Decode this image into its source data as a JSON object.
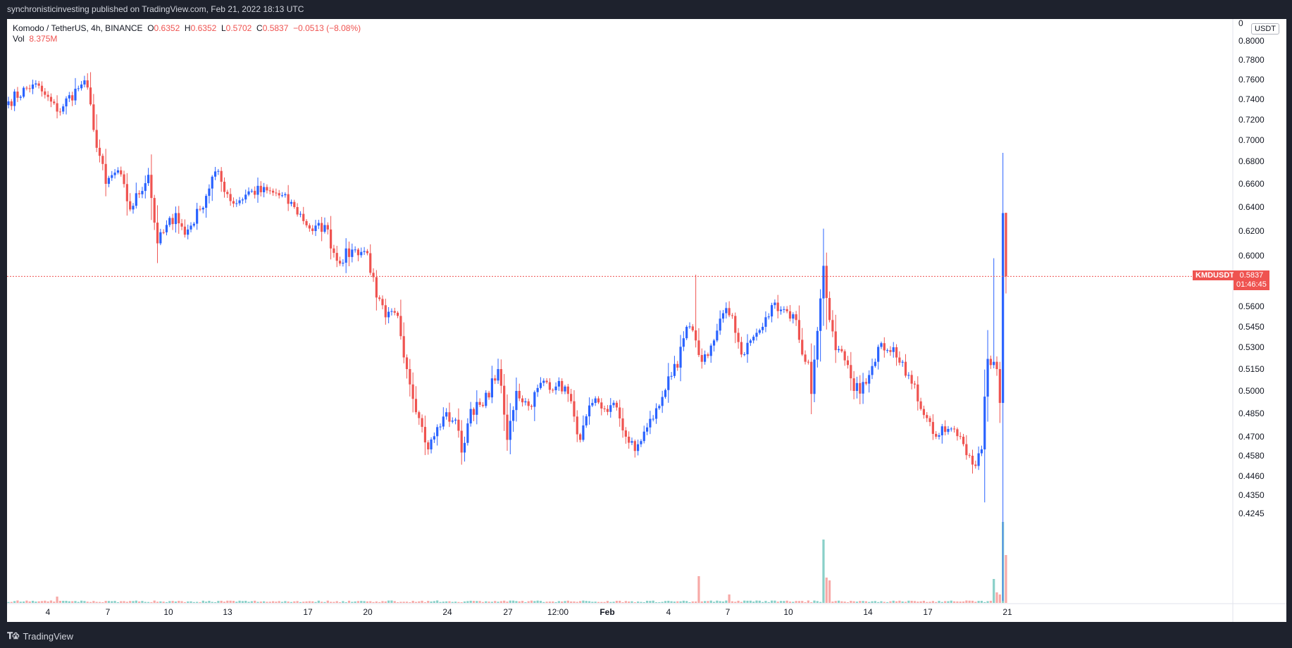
{
  "header": {
    "publish_line": "synchronisticinvesting published on TradingView.com, Feb 21, 2022 18:13 UTC"
  },
  "footer": {
    "brand": "TradingView",
    "logo_icon": "tradingview-logo-icon"
  },
  "legend": {
    "symbol_line": "Komodo / TetherUS, 4h, BINANCE",
    "o_label": "O",
    "o_value": "0.6352",
    "h_label": "H",
    "h_value": "0.6352",
    "l_label": "L",
    "l_value": "0.5702",
    "c_label": "C",
    "c_value": "0.5837",
    "change": "−0.0513 (−8.08%)",
    "vol_label": "Vol",
    "vol_value": "8.375M"
  },
  "price_axis": {
    "unit": "USDT",
    "top_tick": "0"
  },
  "last_price": {
    "symbol": "KMDUSDT",
    "value": "0.5837",
    "countdown": "01:46:45"
  },
  "colors": {
    "up": "#2962ff",
    "down": "#ef5350",
    "vol_up": "#89d0c8",
    "vol_down": "#f7a9a7",
    "price_line": "#ef5350"
  },
  "chart_data": {
    "type": "candlestick",
    "interval": "4h",
    "x_tick_labels": [
      "4",
      "7",
      "10",
      "13",
      "17",
      "20",
      "24",
      "27",
      "12:00",
      "Feb",
      "4",
      "7",
      "10",
      "14",
      "17",
      "21"
    ],
    "y_tick_labels": [
      "0.8000",
      "0.7800",
      "0.7600",
      "0.7400",
      "0.7200",
      "0.7000",
      "0.6800",
      "0.6600",
      "0.6400",
      "0.6200",
      "0.6000",
      "0.5600",
      "0.5450",
      "0.5300",
      "0.5150",
      "0.5000",
      "0.4850",
      "0.4700",
      "0.4580",
      "0.4460",
      "0.4350",
      "0.4245"
    ],
    "log_scale": true,
    "grid": false,
    "waypoints": [
      {
        "x": 0,
        "price": 0.738
      },
      {
        "x": 8,
        "price": 0.755
      },
      {
        "x": 11,
        "price": 0.748
      },
      {
        "x": 16,
        "price": 0.728
      },
      {
        "x": 24,
        "price": 0.755
      },
      {
        "x": 26,
        "price": 0.752
      },
      {
        "x": 28,
        "price": 0.71
      },
      {
        "x": 32,
        "price": 0.66
      },
      {
        "x": 36,
        "price": 0.672
      },
      {
        "x": 40,
        "price": 0.638
      },
      {
        "x": 46,
        "price": 0.668
      },
      {
        "x": 49,
        "price": 0.61
      },
      {
        "x": 55,
        "price": 0.635
      },
      {
        "x": 58,
        "price": 0.617
      },
      {
        "x": 63,
        "price": 0.638
      },
      {
        "x": 68,
        "price": 0.671
      },
      {
        "x": 74,
        "price": 0.643
      },
      {
        "x": 80,
        "price": 0.654
      },
      {
        "x": 88,
        "price": 0.652
      },
      {
        "x": 94,
        "price": 0.64
      },
      {
        "x": 100,
        "price": 0.62
      },
      {
        "x": 104,
        "price": 0.625
      },
      {
        "x": 108,
        "price": 0.596
      },
      {
        "x": 114,
        "price": 0.605
      },
      {
        "x": 118,
        "price": 0.602
      },
      {
        "x": 121,
        "price": 0.567
      },
      {
        "x": 124,
        "price": 0.552
      },
      {
        "x": 128,
        "price": 0.553
      },
      {
        "x": 131,
        "price": 0.515
      },
      {
        "x": 135,
        "price": 0.482
      },
      {
        "x": 138,
        "price": 0.462
      },
      {
        "x": 143,
        "price": 0.483
      },
      {
        "x": 147,
        "price": 0.481
      },
      {
        "x": 149,
        "price": 0.46
      },
      {
        "x": 152,
        "price": 0.488
      },
      {
        "x": 156,
        "price": 0.49
      },
      {
        "x": 161,
        "price": 0.515
      },
      {
        "x": 164,
        "price": 0.468
      },
      {
        "x": 167,
        "price": 0.5
      },
      {
        "x": 171,
        "price": 0.49
      },
      {
        "x": 176,
        "price": 0.507
      },
      {
        "x": 180,
        "price": 0.503
      },
      {
        "x": 183,
        "price": 0.503
      },
      {
        "x": 186,
        "price": 0.483
      },
      {
        "x": 188,
        "price": 0.468
      },
      {
        "x": 192,
        "price": 0.492
      },
      {
        "x": 196,
        "price": 0.488
      },
      {
        "x": 200,
        "price": 0.489
      },
      {
        "x": 203,
        "price": 0.47
      },
      {
        "x": 206,
        "price": 0.461
      },
      {
        "x": 210,
        "price": 0.476
      },
      {
        "x": 214,
        "price": 0.49
      },
      {
        "x": 217,
        "price": 0.51
      },
      {
        "x": 220,
        "price": 0.516
      },
      {
        "x": 223,
        "price": 0.545
      },
      {
        "x": 226,
        "price": 0.535
      },
      {
        "x": 228,
        "price": 0.52
      },
      {
        "x": 232,
        "price": 0.535
      },
      {
        "x": 235,
        "price": 0.555
      },
      {
        "x": 238,
        "price": 0.553
      },
      {
        "x": 241,
        "price": 0.525
      },
      {
        "x": 244,
        "price": 0.535
      },
      {
        "x": 248,
        "price": 0.545
      },
      {
        "x": 252,
        "price": 0.563
      },
      {
        "x": 255,
        "price": 0.558
      },
      {
        "x": 259,
        "price": 0.55
      },
      {
        "x": 261,
        "price": 0.525
      },
      {
        "x": 263,
        "price": 0.52
      },
      {
        "x": 264,
        "price": 0.498
      },
      {
        "x": 266,
        "price": 0.542
      },
      {
        "x": 268,
        "price": 0.592
      },
      {
        "x": 270,
        "price": 0.55
      },
      {
        "x": 272,
        "price": 0.528
      },
      {
        "x": 275,
        "price": 0.521
      },
      {
        "x": 278,
        "price": 0.5
      },
      {
        "x": 282,
        "price": 0.505
      },
      {
        "x": 285,
        "price": 0.52
      },
      {
        "x": 287,
        "price": 0.533
      },
      {
        "x": 291,
        "price": 0.53
      },
      {
        "x": 294,
        "price": 0.52
      },
      {
        "x": 297,
        "price": 0.505
      },
      {
        "x": 302,
        "price": 0.482
      },
      {
        "x": 305,
        "price": 0.47
      },
      {
        "x": 309,
        "price": 0.475
      },
      {
        "x": 313,
        "price": 0.47
      },
      {
        "x": 316,
        "price": 0.458
      },
      {
        "x": 318,
        "price": 0.452
      },
      {
        "x": 320,
        "price": 0.462
      },
      {
        "x": 322,
        "price": 0.522
      },
      {
        "x": 324,
        "price": 0.52
      },
      {
        "x": 325,
        "price": 0.515
      },
      {
        "x": 326,
        "price": 0.492
      },
      {
        "x": 327,
        "price": 0.635
      },
      {
        "x": 328,
        "price": 0.5837
      }
    ],
    "volume_spikes": [
      {
        "x": 16,
        "value": 0.9
      },
      {
        "x": 227,
        "value": 3.8
      },
      {
        "x": 237,
        "value": 1.2
      },
      {
        "x": 268,
        "value": 9.0
      },
      {
        "x": 269,
        "value": 3.6
      },
      {
        "x": 270,
        "value": 3.2
      },
      {
        "x": 324,
        "value": 3.4
      },
      {
        "x": 325,
        "value": 1.5
      },
      {
        "x": 326,
        "value": 1.2
      },
      {
        "x": 327,
        "value": 11.5
      },
      {
        "x": 328,
        "value": 6.8
      }
    ],
    "last_close": 0.5837
  }
}
